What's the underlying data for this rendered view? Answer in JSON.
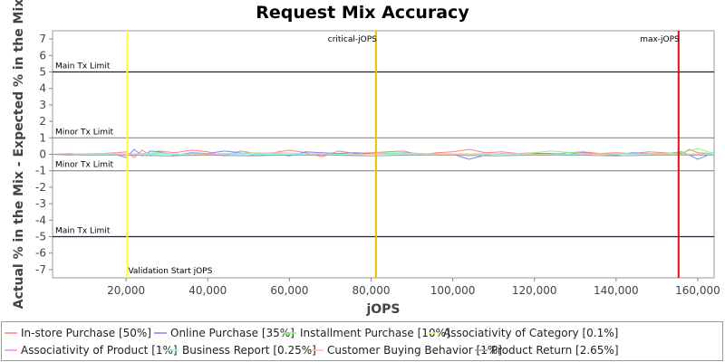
{
  "chart_data": {
    "type": "line",
    "title": "Request Mix Accuracy",
    "xlabel": "jOPS",
    "ylabel": "Actual % in the Mix - Expected % in the Mix",
    "xlim": [
      2000,
      164000
    ],
    "ylim": [
      -7.5,
      7.5
    ],
    "x_ticks": [
      20000,
      40000,
      60000,
      80000,
      100000,
      120000,
      140000,
      160000
    ],
    "x_tick_labels": [
      "20,000",
      "40,000",
      "60,000",
      "80,000",
      "100,000",
      "120,000",
      "140,000",
      "160,000"
    ],
    "y_ticks": [
      -7,
      -6,
      -5,
      -4,
      -3,
      -2,
      -1,
      0,
      1,
      2,
      3,
      4,
      5,
      6,
      7
    ],
    "grid": false,
    "legend_position": "bottom",
    "reference_lines": [
      {
        "label": "Main Tx Limit",
        "y": 5,
        "color": "#1a1a66"
      },
      {
        "label": "Minor Tx Limit",
        "y": 1,
        "color": "#888888"
      },
      {
        "label": "Minor Tx Limit",
        "y": -1,
        "color": "#888888"
      },
      {
        "label": "Main Tx Limit",
        "y": -5,
        "color": "#1a1a66"
      }
    ],
    "vertical_markers": [
      {
        "label": "Validation Start jOPS",
        "x": 20300,
        "color": "#ffff33"
      },
      {
        "label": "critical-jOPS",
        "x": 81200,
        "color": "#e6c200"
      },
      {
        "label": "max-jOPS",
        "x": 155300,
        "color": "#e01010"
      }
    ],
    "series": [
      {
        "name": "In-store Purchase [50%]",
        "color": "#ff8080",
        "x": [
          2000,
          6000,
          10000,
          14000,
          18000,
          20000,
          22000,
          24000,
          26000,
          28000,
          32000,
          36000,
          40000,
          44000,
          48000,
          52000,
          56000,
          60000,
          64000,
          68000,
          72000,
          76000,
          80000,
          84000,
          88000,
          92000,
          96000,
          100000,
          104000,
          108000,
          112000,
          116000,
          120000,
          124000,
          128000,
          132000,
          136000,
          140000,
          144000,
          148000,
          152000,
          156000,
          158000,
          160000,
          164000
        ],
        "y": [
          0,
          0.05,
          0,
          0.05,
          0.1,
          0.15,
          -0.2,
          0.25,
          -0.1,
          0.2,
          0.1,
          0.25,
          0.15,
          -0.1,
          0.2,
          0.05,
          0.1,
          0.25,
          0.1,
          -0.15,
          0.2,
          0.05,
          0.1,
          0.15,
          0.2,
          -0.05,
          0.1,
          0.15,
          0.3,
          0.1,
          0.15,
          0.05,
          0.1,
          -0.05,
          0.1,
          0.15,
          0.05,
          0.1,
          0.05,
          0.15,
          0.1,
          0.05,
          0.3,
          0.1,
          0.05
        ]
      },
      {
        "name": "Online Purchase [35%]",
        "color": "#8080ff",
        "x": [
          2000,
          6000,
          10000,
          14000,
          18000,
          20000,
          22000,
          24000,
          26000,
          28000,
          32000,
          36000,
          40000,
          44000,
          48000,
          52000,
          56000,
          60000,
          64000,
          68000,
          72000,
          76000,
          80000,
          84000,
          88000,
          92000,
          96000,
          100000,
          104000,
          108000,
          112000,
          116000,
          120000,
          124000,
          128000,
          132000,
          136000,
          140000,
          144000,
          148000,
          152000,
          156000,
          158000,
          160000,
          164000
        ],
        "y": [
          0,
          -0.05,
          0,
          0.05,
          -0.05,
          -0.2,
          0.3,
          -0.1,
          0.2,
          0.15,
          -0.05,
          0.1,
          0.05,
          0.2,
          0.1,
          -0.1,
          0.05,
          -0.1,
          0.15,
          0.1,
          0.05,
          0.1,
          0.05,
          0.05,
          0.1,
          0.05,
          0,
          0,
          -0.3,
          -0.05,
          0.05,
          0,
          0.05,
          0.05,
          0,
          0.1,
          0,
          -0.05,
          0.1,
          0.05,
          0.05,
          0.15,
          -0.05,
          -0.3,
          0.1
        ]
      },
      {
        "name": "Installment Purchase [10%]",
        "color": "#80ff80",
        "x": [
          2000,
          12000,
          20000,
          28000,
          36000,
          44000,
          52000,
          60000,
          68000,
          76000,
          84000,
          92000,
          100000,
          108000,
          116000,
          124000,
          132000,
          140000,
          148000,
          156000,
          160000,
          164000
        ],
        "y": [
          0,
          0.05,
          0,
          0.1,
          -0.05,
          0.05,
          0.1,
          0,
          0.05,
          -0.05,
          0.1,
          0.05,
          0,
          0.05,
          0,
          0.2,
          0.05,
          0,
          0.05,
          0.1,
          0.35,
          0.05
        ]
      },
      {
        "name": "Associativity of Category [0.1%]",
        "color": "#ffff80",
        "x": [
          2000,
          20000,
          40000,
          60000,
          80000,
          100000,
          120000,
          140000,
          164000
        ],
        "y": [
          0,
          0,
          0,
          0,
          0,
          0,
          0,
          0,
          0
        ]
      },
      {
        "name": "Associativity of Product [1%]",
        "color": "#ff80ff",
        "x": [
          2000,
          20000,
          40000,
          60000,
          80000,
          100000,
          120000,
          140000,
          164000
        ],
        "y": [
          0,
          0.02,
          0,
          -0.02,
          0,
          0.02,
          0,
          0,
          0
        ]
      },
      {
        "name": "Business Report [0.25%]",
        "color": "#80ffff",
        "x": [
          2000,
          20000,
          40000,
          60000,
          80000,
          100000,
          120000,
          140000,
          164000
        ],
        "y": [
          0,
          0,
          0.02,
          0,
          0,
          -0.02,
          0,
          0,
          0
        ]
      },
      {
        "name": "Customer Buying Behavior [1%]",
        "color": "#ffc0a0",
        "x": [
          2000,
          16000,
          30000,
          44000,
          58000,
          72000,
          86000,
          100000,
          114000,
          128000,
          142000,
          156000,
          164000
        ],
        "y": [
          0,
          0.05,
          -0.1,
          0.05,
          0.1,
          -0.05,
          0.05,
          0,
          0.05,
          -0.05,
          0.05,
          0,
          0.05
        ]
      },
      {
        "name": "Product Return [2.65%]",
        "color": "#a0a0a0",
        "x": [
          2000,
          10000,
          20000,
          30000,
          40000,
          50000,
          60000,
          70000,
          80000,
          90000,
          100000,
          110000,
          120000,
          130000,
          140000,
          150000,
          160000,
          164000
        ],
        "y": [
          0,
          -0.05,
          -0.05,
          -0.1,
          -0.05,
          -0.1,
          -0.05,
          -0.05,
          -0.1,
          -0.05,
          -0.05,
          -0.1,
          -0.05,
          -0.05,
          -0.1,
          -0.05,
          -0.05,
          -0.05
        ]
      }
    ]
  }
}
